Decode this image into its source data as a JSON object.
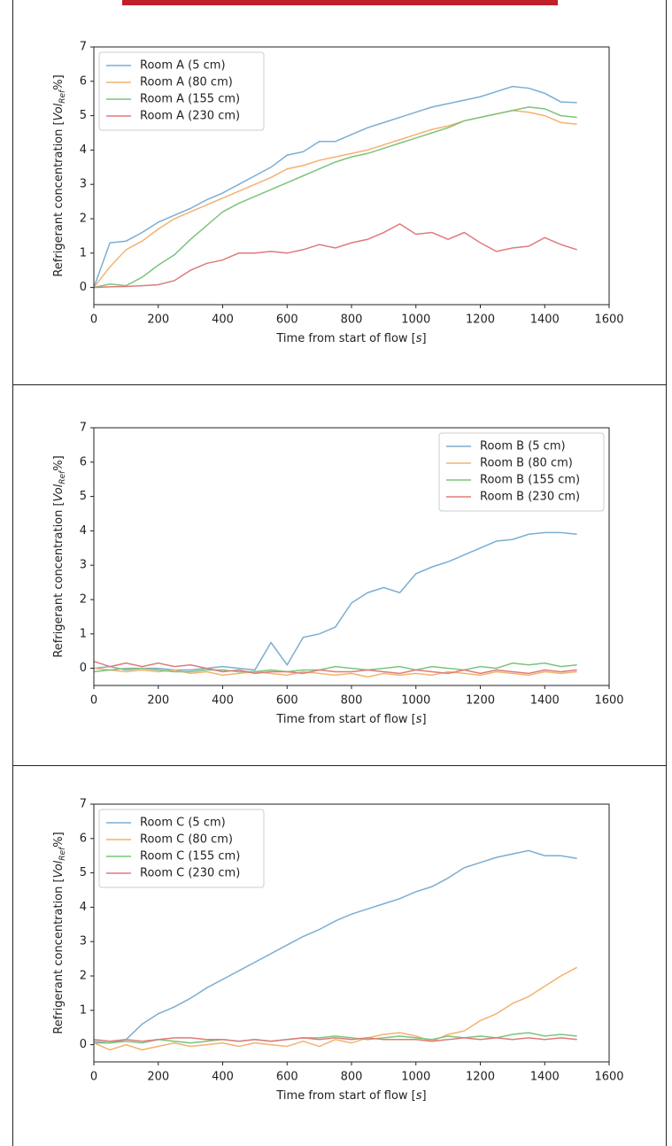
{
  "chart_data": [
    {
      "type": "line",
      "x": [
        0,
        50,
        100,
        150,
        200,
        250,
        300,
        350,
        400,
        450,
        500,
        550,
        600,
        650,
        700,
        750,
        800,
        850,
        900,
        950,
        1000,
        1050,
        1100,
        1150,
        1200,
        1250,
        1300,
        1350,
        1400,
        1450,
        1500
      ],
      "series": [
        {
          "name": "Room A (5 cm)",
          "color": "#7aaed3",
          "values": [
            0,
            1.3,
            1.35,
            1.6,
            1.9,
            2.1,
            2.3,
            2.55,
            2.75,
            3.0,
            3.25,
            3.5,
            3.85,
            3.95,
            4.25,
            4.25,
            4.45,
            4.65,
            4.8,
            4.95,
            5.1,
            5.25,
            5.35,
            5.45,
            5.55,
            5.7,
            5.85,
            5.8,
            5.65,
            5.4,
            5.38
          ]
        },
        {
          "name": "Room A (80 cm)",
          "color": "#f4b26f",
          "values": [
            0,
            0.6,
            1.1,
            1.35,
            1.7,
            2.0,
            2.2,
            2.4,
            2.6,
            2.8,
            3.0,
            3.2,
            3.45,
            3.55,
            3.7,
            3.8,
            3.9,
            4.0,
            4.15,
            4.3,
            4.45,
            4.6,
            4.7,
            4.85,
            4.95,
            5.05,
            5.15,
            5.1,
            5.0,
            4.8,
            4.75
          ]
        },
        {
          "name": "Room A (155 cm)",
          "color": "#7cc47c",
          "values": [
            0,
            0.1,
            0.05,
            0.3,
            0.65,
            0.95,
            1.4,
            1.8,
            2.2,
            2.45,
            2.65,
            2.85,
            3.05,
            3.25,
            3.45,
            3.65,
            3.8,
            3.9,
            4.05,
            4.2,
            4.35,
            4.5,
            4.65,
            4.85,
            4.95,
            5.05,
            5.15,
            5.25,
            5.2,
            5.0,
            4.95
          ]
        },
        {
          "name": "Room A (230 cm)",
          "color": "#df7b7b",
          "values": [
            0,
            0.02,
            0.03,
            0.05,
            0.08,
            0.2,
            0.5,
            0.7,
            0.8,
            1.0,
            1.0,
            1.05,
            1.0,
            1.1,
            1.25,
            1.15,
            1.3,
            1.4,
            1.6,
            1.85,
            1.55,
            1.6,
            1.4,
            1.6,
            1.3,
            1.05,
            1.15,
            1.2,
            1.45,
            1.25,
            1.1
          ]
        }
      ],
      "xlim": [
        0,
        1600
      ],
      "ylim": [
        -0.5,
        7
      ],
      "xticks": [
        0,
        200,
        400,
        600,
        800,
        1000,
        1200,
        1400,
        1600
      ],
      "yticks": [
        0,
        1,
        2,
        3,
        4,
        5,
        6,
        7
      ],
      "xlabel": {
        "text": "Time from start of flow [",
        "italic": "s",
        "end": "]"
      },
      "ylabel": {
        "text": "Refrigerant concentration [",
        "italic": "Vol",
        "sub": "Ref",
        "end": "%]"
      },
      "legend": "upper left"
    },
    {
      "type": "line",
      "x": [
        0,
        50,
        100,
        150,
        200,
        250,
        300,
        350,
        400,
        450,
        500,
        550,
        600,
        650,
        700,
        750,
        800,
        850,
        900,
        950,
        1000,
        1050,
        1100,
        1150,
        1200,
        1250,
        1300,
        1350,
        1400,
        1450,
        1500
      ],
      "series": [
        {
          "name": "Room B (5 cm)",
          "color": "#7aaed3",
          "values": [
            0,
            0.05,
            -0.05,
            0,
            0,
            -0.05,
            -0.05,
            0,
            0.05,
            0,
            -0.05,
            0.75,
            0.1,
            0.9,
            1.0,
            1.2,
            1.9,
            2.2,
            2.35,
            2.2,
            2.75,
            2.95,
            3.1,
            3.3,
            3.5,
            3.7,
            3.75,
            3.9,
            3.95,
            3.95,
            3.9
          ]
        },
        {
          "name": "Room B (80 cm)",
          "color": "#f4b26f",
          "values": [
            0,
            -0.05,
            -0.1,
            -0.05,
            -0.1,
            -0.05,
            -0.15,
            -0.1,
            -0.2,
            -0.15,
            -0.1,
            -0.15,
            -0.2,
            -0.1,
            -0.15,
            -0.2,
            -0.15,
            -0.25,
            -0.15,
            -0.2,
            -0.15,
            -0.2,
            -0.1,
            -0.15,
            -0.2,
            -0.1,
            -0.15,
            -0.2,
            -0.1,
            -0.15,
            -0.1
          ]
        },
        {
          "name": "Room B (155 cm)",
          "color": "#7cc47c",
          "values": [
            -0.1,
            -0.05,
            0,
            0,
            -0.05,
            -0.1,
            -0.1,
            -0.05,
            -0.05,
            -0.1,
            -0.1,
            -0.05,
            -0.1,
            -0.05,
            -0.05,
            0.05,
            0,
            -0.05,
            0,
            0.05,
            -0.05,
            0.05,
            0,
            -0.05,
            0.05,
            0,
            0.15,
            0.1,
            0.15,
            0.05,
            0.1
          ]
        },
        {
          "name": "Room B (230 cm)",
          "color": "#df7b7b",
          "values": [
            0.2,
            0.05,
            0.15,
            0.05,
            0.15,
            0.05,
            0.1,
            0,
            -0.1,
            -0.05,
            -0.15,
            -0.1,
            -0.1,
            -0.15,
            -0.05,
            -0.1,
            -0.1,
            -0.05,
            -0.1,
            -0.15,
            -0.05,
            -0.1,
            -0.15,
            -0.05,
            -0.15,
            -0.05,
            -0.1,
            -0.15,
            -0.05,
            -0.1,
            -0.05
          ]
        }
      ],
      "xlim": [
        0,
        1600
      ],
      "ylim": [
        -0.5,
        7
      ],
      "xticks": [
        0,
        200,
        400,
        600,
        800,
        1000,
        1200,
        1400,
        1600
      ],
      "yticks": [
        0,
        1,
        2,
        3,
        4,
        5,
        6,
        7
      ],
      "xlabel": {
        "text": "Time from start of flow [",
        "italic": "s",
        "end": "]"
      },
      "ylabel": {
        "text": "Refrigerant concentration [",
        "italic": "Vol",
        "sub": "Ref",
        "end": "%]"
      },
      "legend": "upper right"
    },
    {
      "type": "line",
      "x": [
        0,
        50,
        100,
        150,
        200,
        250,
        300,
        350,
        400,
        450,
        500,
        550,
        600,
        650,
        700,
        750,
        800,
        850,
        900,
        950,
        1000,
        1050,
        1100,
        1150,
        1200,
        1250,
        1300,
        1350,
        1400,
        1450,
        1500
      ],
      "series": [
        {
          "name": "Room C (5 cm)",
          "color": "#7aaed3",
          "values": [
            0.05,
            0.05,
            0.15,
            0.6,
            0.9,
            1.1,
            1.35,
            1.65,
            1.9,
            2.15,
            2.4,
            2.65,
            2.9,
            3.15,
            3.35,
            3.6,
            3.8,
            3.95,
            4.1,
            4.25,
            4.45,
            4.6,
            4.85,
            5.15,
            5.3,
            5.45,
            5.55,
            5.65,
            5.5,
            5.5,
            5.42
          ]
        },
        {
          "name": "Room C (80 cm)",
          "color": "#f4b26f",
          "values": [
            0.05,
            -0.15,
            0,
            -0.15,
            -0.05,
            0.05,
            -0.05,
            0,
            0.05,
            -0.05,
            0.05,
            0,
            -0.05,
            0.1,
            -0.05,
            0.15,
            0.05,
            0.2,
            0.3,
            0.35,
            0.25,
            0.1,
            0.3,
            0.4,
            0.7,
            0.9,
            1.2,
            1.4,
            1.7,
            2.0,
            2.25
          ]
        },
        {
          "name": "Room C (155 cm)",
          "color": "#7cc47c",
          "values": [
            0.1,
            0.05,
            0.1,
            0.05,
            0.15,
            0.1,
            0.05,
            0.1,
            0.15,
            0.1,
            0.15,
            0.1,
            0.15,
            0.2,
            0.2,
            0.25,
            0.2,
            0.15,
            0.2,
            0.25,
            0.2,
            0.15,
            0.25,
            0.2,
            0.25,
            0.2,
            0.3,
            0.35,
            0.25,
            0.3,
            0.25
          ]
        },
        {
          "name": "Room C (230 cm)",
          "color": "#df7b7b",
          "values": [
            0.15,
            0.1,
            0.15,
            0.1,
            0.15,
            0.2,
            0.2,
            0.15,
            0.15,
            0.1,
            0.15,
            0.1,
            0.15,
            0.2,
            0.15,
            0.2,
            0.15,
            0.2,
            0.15,
            0.15,
            0.15,
            0.1,
            0.15,
            0.2,
            0.15,
            0.2,
            0.15,
            0.2,
            0.15,
            0.2,
            0.15
          ]
        }
      ],
      "xlim": [
        0,
        1600
      ],
      "ylim": [
        -0.5,
        7
      ],
      "xticks": [
        0,
        200,
        400,
        600,
        800,
        1000,
        1200,
        1400,
        1600
      ],
      "yticks": [
        0,
        1,
        2,
        3,
        4,
        5,
        6,
        7
      ],
      "xlabel": {
        "text": "Time from start of flow [",
        "italic": "s",
        "end": "]"
      },
      "ylabel": {
        "text": "Refrigerant concentration [",
        "italic": "Vol",
        "sub": "Ref",
        "end": "%]"
      },
      "legend": "upper left"
    }
  ]
}
